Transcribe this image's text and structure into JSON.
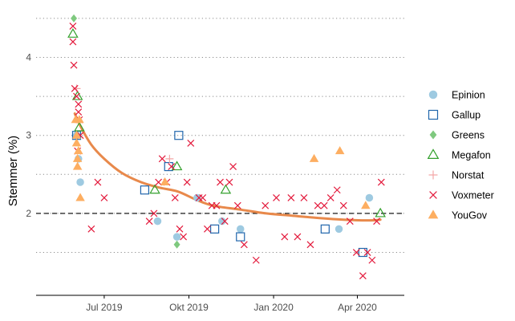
{
  "chart_data": {
    "type": "scatter",
    "title": "",
    "xlabel": "",
    "ylabel": "Stemmer (%)",
    "x_ticks": [
      {
        "date": "2019-07-01",
        "label": "Jul 2019"
      },
      {
        "date": "2019-10-01",
        "label": "Okt 2019"
      },
      {
        "date": "2020-01-01",
        "label": "Jan 2020"
      },
      {
        "date": "2020-04-01",
        "label": "Apr 2020"
      }
    ],
    "xlim": [
      "2019-04-18",
      "2020-05-22"
    ],
    "y_ticks": [
      2,
      3,
      4
    ],
    "ylim": [
      0.95,
      4.55
    ],
    "gridlines_y": [
      1.5,
      2,
      2.5,
      3,
      3.5,
      4,
      4.5
    ],
    "reference_line": {
      "y": 2,
      "style": "dashed",
      "color": "#000000"
    },
    "legend_position": "right",
    "series": [
      {
        "name": "Epinion",
        "marker": "circle",
        "color": "#9ecae1",
        "points": [
          [
            "2019-06-01",
            3.0
          ],
          [
            "2019-06-03",
            2.7
          ],
          [
            "2019-06-05",
            2.4
          ],
          [
            "2019-08-28",
            1.9
          ],
          [
            "2019-09-18",
            1.7
          ],
          [
            "2019-10-10",
            2.2
          ],
          [
            "2019-11-06",
            1.9
          ],
          [
            "2019-11-26",
            1.8
          ],
          [
            "2020-03-12",
            1.8
          ],
          [
            "2020-04-14",
            2.2
          ]
        ]
      },
      {
        "name": "Gallup",
        "marker": "square-open",
        "color": "#2166ac",
        "points": [
          [
            "2019-06-01",
            3.0
          ],
          [
            "2019-08-14",
            2.3
          ],
          [
            "2019-09-09",
            2.6
          ],
          [
            "2019-09-20",
            3.0
          ],
          [
            "2019-10-29",
            1.8
          ],
          [
            "2019-11-26",
            1.7
          ],
          [
            "2020-02-26",
            1.8
          ],
          [
            "2020-04-07",
            1.5
          ]
        ]
      },
      {
        "name": "Greens",
        "marker": "diamond",
        "color": "#7fc97f",
        "points": [
          [
            "2019-05-29",
            4.5
          ],
          [
            "2019-09-18",
            1.6
          ]
        ]
      },
      {
        "name": "Megafon",
        "marker": "triangle-open",
        "color": "#33a02c",
        "points": [
          [
            "2019-05-28",
            4.3
          ],
          [
            "2019-06-02",
            3.5
          ],
          [
            "2019-06-04",
            3.1
          ],
          [
            "2019-08-25",
            2.3
          ],
          [
            "2019-09-18",
            2.6
          ],
          [
            "2019-11-10",
            2.3
          ],
          [
            "2020-04-26",
            2.0
          ]
        ]
      },
      {
        "name": "Norstat",
        "marker": "plus",
        "color": "#f4a6a6",
        "points": [
          [
            "2019-06-01",
            3.6
          ],
          [
            "2019-09-10",
            2.7
          ]
        ]
      },
      {
        "name": "Voxmeter",
        "marker": "x",
        "color": "#e31a3c",
        "points": [
          [
            "2019-05-28",
            4.4
          ],
          [
            "2019-05-28",
            4.2
          ],
          [
            "2019-05-29",
            3.9
          ],
          [
            "2019-05-30",
            3.6
          ],
          [
            "2019-06-01",
            3.5
          ],
          [
            "2019-06-03",
            3.4
          ],
          [
            "2019-06-03",
            3.3
          ],
          [
            "2019-06-04",
            3.2
          ],
          [
            "2019-06-05",
            3.0
          ],
          [
            "2019-06-02",
            2.8
          ],
          [
            "2019-06-17",
            1.8
          ],
          [
            "2019-06-24",
            2.4
          ],
          [
            "2019-07-01",
            2.2
          ],
          [
            "2019-08-19",
            1.9
          ],
          [
            "2019-08-24",
            2.0
          ],
          [
            "2019-08-29",
            2.4
          ],
          [
            "2019-09-02",
            2.7
          ],
          [
            "2019-09-07",
            2.4
          ],
          [
            "2019-09-12",
            2.6
          ],
          [
            "2019-09-16",
            2.2
          ],
          [
            "2019-09-21",
            1.8
          ],
          [
            "2019-09-25",
            1.7
          ],
          [
            "2019-09-29",
            2.4
          ],
          [
            "2019-10-03",
            2.9
          ],
          [
            "2019-10-12",
            2.2
          ],
          [
            "2019-10-16",
            2.2
          ],
          [
            "2019-10-21",
            1.8
          ],
          [
            "2019-10-26",
            2.1
          ],
          [
            "2019-10-31",
            2.1
          ],
          [
            "2019-11-04",
            2.4
          ],
          [
            "2019-11-09",
            1.9
          ],
          [
            "2019-11-14",
            2.4
          ],
          [
            "2019-11-18",
            2.6
          ],
          [
            "2019-11-23",
            2.1
          ],
          [
            "2019-11-30",
            1.6
          ],
          [
            "2019-12-13",
            1.4
          ],
          [
            "2019-12-23",
            2.1
          ],
          [
            "2020-01-04",
            2.2
          ],
          [
            "2020-01-13",
            1.7
          ],
          [
            "2020-01-20",
            2.2
          ],
          [
            "2020-01-27",
            1.7
          ],
          [
            "2020-02-03",
            2.2
          ],
          [
            "2020-02-10",
            1.6
          ],
          [
            "2020-02-18",
            2.1
          ],
          [
            "2020-02-25",
            2.1
          ],
          [
            "2020-03-03",
            2.2
          ],
          [
            "2020-03-10",
            2.3
          ],
          [
            "2020-03-17",
            2.1
          ],
          [
            "2020-03-24",
            1.9
          ],
          [
            "2020-03-31",
            1.5
          ],
          [
            "2020-04-07",
            1.2
          ],
          [
            "2020-04-12",
            1.5
          ],
          [
            "2020-04-17",
            1.4
          ],
          [
            "2020-04-22",
            1.9
          ],
          [
            "2020-04-27",
            2.4
          ]
        ]
      },
      {
        "name": "YouGov",
        "marker": "triangle",
        "color": "#fdae61",
        "points": [
          [
            "2019-05-31",
            3.2
          ],
          [
            "2019-06-01",
            3.0
          ],
          [
            "2019-06-01",
            2.9
          ],
          [
            "2019-06-02",
            2.7
          ],
          [
            "2019-06-02",
            2.6
          ],
          [
            "2019-06-04",
            3.2
          ],
          [
            "2019-06-05",
            2.2
          ],
          [
            "2019-06-03",
            2.8
          ],
          [
            "2019-09-05",
            2.4
          ],
          [
            "2020-02-14",
            2.7
          ],
          [
            "2020-03-13",
            2.8
          ],
          [
            "2020-04-10",
            2.1
          ]
        ]
      }
    ],
    "trend": {
      "color": "#e8894b",
      "points": [
        [
          "2019-05-30",
          3.28
        ],
        [
          "2019-06-06",
          3.1
        ],
        [
          "2019-06-17",
          2.88
        ],
        [
          "2019-07-01",
          2.7
        ],
        [
          "2019-07-20",
          2.52
        ],
        [
          "2019-08-10",
          2.4
        ],
        [
          "2019-08-30",
          2.33
        ],
        [
          "2019-09-19",
          2.28
        ],
        [
          "2019-10-08",
          2.18
        ],
        [
          "2019-10-27",
          2.1
        ],
        [
          "2019-11-25",
          2.05
        ],
        [
          "2019-12-24",
          2.0
        ],
        [
          "2020-01-22",
          1.97
        ],
        [
          "2020-02-20",
          1.94
        ],
        [
          "2020-03-17",
          1.92
        ],
        [
          "2020-04-15",
          1.91
        ],
        [
          "2020-04-26",
          1.92
        ]
      ]
    }
  }
}
